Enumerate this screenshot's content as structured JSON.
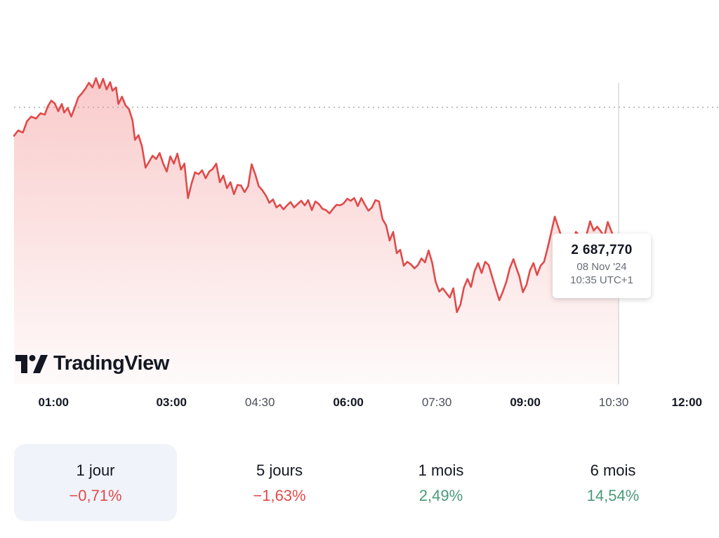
{
  "colors": {
    "line": "#e04a4a",
    "fill_top": "#f28b8b",
    "negative": "#e04a4a",
    "positive": "#4a9a78",
    "crosshair": "#c8c8c8",
    "reference_line": "#9a9a9a"
  },
  "watermark": {
    "logo_icon": "tradingview-logo-icon",
    "text": "TradingView"
  },
  "tooltip": {
    "price": "2 687,770",
    "date": "08 Nov '24",
    "time": "10:35 UTC+1"
  },
  "chart_data": {
    "type": "area",
    "x_unit": "hours",
    "x_range": [
      0.33,
      12.0
    ],
    "y_range": [
      2661.5,
      2707
    ],
    "reference_value": 2703.3,
    "crosshair_time": "10:35",
    "x_ticks": [
      {
        "label": "01:00",
        "t": 1.0,
        "style": "major"
      },
      {
        "label": "03:00",
        "t": 3.0,
        "style": "major"
      },
      {
        "label": "04:30",
        "t": 4.5,
        "style": "minor"
      },
      {
        "label": "06:00",
        "t": 6.0,
        "style": "major"
      },
      {
        "label": "07:30",
        "t": 7.5,
        "style": "minor"
      },
      {
        "label": "09:00",
        "t": 9.0,
        "style": "major"
      },
      {
        "label": "10:30",
        "t": 10.5,
        "style": "minor"
      },
      {
        "label": "12:00",
        "t": 12.0,
        "style": "major"
      }
    ],
    "series": [
      {
        "points": [
          [
            0.33,
            2699.0
          ],
          [
            0.4,
            2699.8
          ],
          [
            0.48,
            2699.5
          ],
          [
            0.55,
            2701.2
          ],
          [
            0.62,
            2701.9
          ],
          [
            0.7,
            2701.6
          ],
          [
            0.78,
            2702.4
          ],
          [
            0.85,
            2702.2
          ],
          [
            0.9,
            2703.4
          ],
          [
            0.96,
            2704.3
          ],
          [
            1.02,
            2703.9
          ],
          [
            1.08,
            2702.7
          ],
          [
            1.14,
            2703.8
          ],
          [
            1.18,
            2702.5
          ],
          [
            1.24,
            2703.2
          ],
          [
            1.3,
            2701.9
          ],
          [
            1.36,
            2703.3
          ],
          [
            1.42,
            2704.8
          ],
          [
            1.48,
            2705.4
          ],
          [
            1.54,
            2706.1
          ],
          [
            1.6,
            2707.0
          ],
          [
            1.66,
            2706.3
          ],
          [
            1.72,
            2707.7
          ],
          [
            1.78,
            2706.2
          ],
          [
            1.84,
            2707.6
          ],
          [
            1.9,
            2706.0
          ],
          [
            1.96,
            2707.1
          ],
          [
            2.0,
            2705.8
          ],
          [
            2.06,
            2706.3
          ],
          [
            2.1,
            2703.8
          ],
          [
            2.16,
            2704.9
          ],
          [
            2.22,
            2703.6
          ],
          [
            2.28,
            2703.0
          ],
          [
            2.34,
            2701.3
          ],
          [
            2.38,
            2698.4
          ],
          [
            2.44,
            2699.1
          ],
          [
            2.5,
            2697.4
          ],
          [
            2.56,
            2694.2
          ],
          [
            2.62,
            2695.1
          ],
          [
            2.68,
            2696.0
          ],
          [
            2.74,
            2695.5
          ],
          [
            2.8,
            2696.4
          ],
          [
            2.86,
            2694.8
          ],
          [
            2.92,
            2693.6
          ],
          [
            2.98,
            2695.9
          ],
          [
            3.04,
            2694.8
          ],
          [
            3.1,
            2696.3
          ],
          [
            3.16,
            2693.9
          ],
          [
            3.22,
            2694.8
          ],
          [
            3.28,
            2689.6
          ],
          [
            3.34,
            2691.8
          ],
          [
            3.4,
            2693.5
          ],
          [
            3.46,
            2693.2
          ],
          [
            3.52,
            2693.8
          ],
          [
            3.58,
            2692.6
          ],
          [
            3.64,
            2693.6
          ],
          [
            3.7,
            2694.0
          ],
          [
            3.76,
            2694.8
          ],
          [
            3.82,
            2692.0
          ],
          [
            3.88,
            2693.0
          ],
          [
            3.94,
            2691.1
          ],
          [
            4.0,
            2692.0
          ],
          [
            4.06,
            2690.2
          ],
          [
            4.12,
            2691.6
          ],
          [
            4.18,
            2691.5
          ],
          [
            4.24,
            2690.5
          ],
          [
            4.3,
            2691.4
          ],
          [
            4.36,
            2694.7
          ],
          [
            4.42,
            2693.2
          ],
          [
            4.48,
            2691.4
          ],
          [
            4.54,
            2690.8
          ],
          [
            4.6,
            2690.0
          ],
          [
            4.66,
            2688.9
          ],
          [
            4.72,
            2689.4
          ],
          [
            4.78,
            2688.2
          ],
          [
            4.84,
            2688.6
          ],
          [
            4.9,
            2687.9
          ],
          [
            4.96,
            2688.5
          ],
          [
            5.02,
            2689.0
          ],
          [
            5.08,
            2688.2
          ],
          [
            5.14,
            2688.7
          ],
          [
            5.2,
            2689.2
          ],
          [
            5.26,
            2688.5
          ],
          [
            5.32,
            2689.3
          ],
          [
            5.38,
            2687.8
          ],
          [
            5.44,
            2689.1
          ],
          [
            5.5,
            2688.7
          ],
          [
            5.56,
            2688.0
          ],
          [
            5.62,
            2687.8
          ],
          [
            5.68,
            2687.3
          ],
          [
            5.74,
            2688.0
          ],
          [
            5.8,
            2688.6
          ],
          [
            5.86,
            2688.5
          ],
          [
            5.92,
            2688.8
          ],
          [
            5.98,
            2689.5
          ],
          [
            6.04,
            2689.2
          ],
          [
            6.1,
            2689.6
          ],
          [
            6.16,
            2688.4
          ],
          [
            6.22,
            2689.6
          ],
          [
            6.28,
            2688.6
          ],
          [
            6.34,
            2687.7
          ],
          [
            6.4,
            2688.2
          ],
          [
            6.46,
            2689.3
          ],
          [
            6.52,
            2689.1
          ],
          [
            6.58,
            2686.4
          ],
          [
            6.64,
            2685.5
          ],
          [
            6.7,
            2683.2
          ],
          [
            6.76,
            2684.5
          ],
          [
            6.82,
            2681.3
          ],
          [
            6.88,
            2681.8
          ],
          [
            6.94,
            2679.4
          ],
          [
            7.0,
            2680.0
          ],
          [
            7.06,
            2679.6
          ],
          [
            7.12,
            2679.0
          ],
          [
            7.18,
            2679.5
          ],
          [
            7.24,
            2680.5
          ],
          [
            7.3,
            2679.9
          ],
          [
            7.36,
            2681.7
          ],
          [
            7.42,
            2679.9
          ],
          [
            7.48,
            2677.0
          ],
          [
            7.54,
            2675.5
          ],
          [
            7.6,
            2676.0
          ],
          [
            7.66,
            2675.3
          ],
          [
            7.72,
            2674.6
          ],
          [
            7.78,
            2676.0
          ],
          [
            7.84,
            2672.4
          ],
          [
            7.9,
            2673.5
          ],
          [
            7.96,
            2676.1
          ],
          [
            8.02,
            2677.4
          ],
          [
            8.08,
            2676.2
          ],
          [
            8.14,
            2678.6
          ],
          [
            8.2,
            2679.8
          ],
          [
            8.26,
            2678.3
          ],
          [
            8.32,
            2680.0
          ],
          [
            8.38,
            2679.5
          ],
          [
            8.44,
            2677.7
          ],
          [
            8.5,
            2675.9
          ],
          [
            8.56,
            2674.2
          ],
          [
            8.62,
            2675.5
          ],
          [
            8.68,
            2677.0
          ],
          [
            8.74,
            2679.1
          ],
          [
            8.8,
            2680.4
          ],
          [
            8.84,
            2679.3
          ],
          [
            8.9,
            2677.8
          ],
          [
            8.96,
            2675.4
          ],
          [
            9.02,
            2676.5
          ],
          [
            9.08,
            2678.7
          ],
          [
            9.14,
            2679.8
          ],
          [
            9.2,
            2678.0
          ],
          [
            9.26,
            2679.4
          ],
          [
            9.32,
            2680.0
          ],
          [
            9.38,
            2682.1
          ],
          [
            9.44,
            2684.4
          ],
          [
            9.5,
            2686.8
          ],
          [
            9.56,
            2685.2
          ],
          [
            9.62,
            2683.6
          ],
          [
            9.68,
            2682.7
          ],
          [
            9.74,
            2681.2
          ],
          [
            9.8,
            2683.1
          ],
          [
            9.86,
            2684.5
          ],
          [
            9.92,
            2683.9
          ],
          [
            9.98,
            2683.0
          ],
          [
            10.04,
            2684.1
          ],
          [
            10.1,
            2686.1
          ],
          [
            10.16,
            2684.7
          ],
          [
            10.22,
            2685.3
          ],
          [
            10.28,
            2684.6
          ],
          [
            10.34,
            2683.8
          ],
          [
            10.4,
            2686.0
          ],
          [
            10.46,
            2684.6
          ],
          [
            10.52,
            2683.3
          ],
          [
            10.58,
            2682.7
          ]
        ]
      }
    ]
  },
  "periods": [
    {
      "label": "1 jour",
      "change": "−0,71%",
      "trend": "negative",
      "active": true
    },
    {
      "label": "5 jours",
      "change": "−1,63%",
      "trend": "negative",
      "active": false
    },
    {
      "label": "1 mois",
      "change": "2,49%",
      "trend": "positive",
      "active": false
    },
    {
      "label": "6 mois",
      "change": "14,54%",
      "trend": "positive",
      "active": false
    }
  ]
}
